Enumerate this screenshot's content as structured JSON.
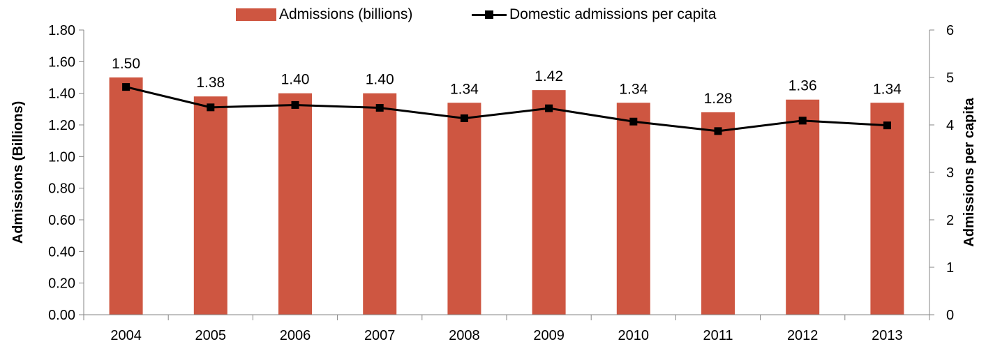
{
  "chart_data": {
    "type": "bar",
    "title": "",
    "categories": [
      "2004",
      "2005",
      "2006",
      "2007",
      "2008",
      "2009",
      "2010",
      "2011",
      "2012",
      "2013"
    ],
    "series": [
      {
        "name": "Admissions (billions)",
        "type": "bar",
        "axis": "left",
        "color": "#CE5641",
        "values": [
          1.5,
          1.38,
          1.4,
          1.4,
          1.34,
          1.42,
          1.34,
          1.28,
          1.36,
          1.34
        ],
        "data_labels": [
          "1.50",
          "1.38",
          "1.40",
          "1.40",
          "1.34",
          "1.42",
          "1.34",
          "1.28",
          "1.36",
          "1.34"
        ]
      },
      {
        "name": "Domestic admissions per capita",
        "type": "line",
        "axis": "right",
        "color": "#000000",
        "marker": "square",
        "values": [
          4.8,
          4.37,
          4.42,
          4.36,
          4.14,
          4.35,
          4.07,
          3.87,
          4.09,
          3.99
        ]
      }
    ],
    "y_left": {
      "label": "Admissions (Billions)",
      "min": 0,
      "max": 1.8,
      "ticks": [
        "0.00",
        "0.20",
        "0.40",
        "0.60",
        "0.80",
        "1.00",
        "1.20",
        "1.40",
        "1.60",
        "1.80"
      ]
    },
    "y_right": {
      "label": "Admissions per capita",
      "min": 0,
      "max": 6,
      "ticks": [
        "0",
        "1",
        "2",
        "3",
        "4",
        "5",
        "6"
      ]
    },
    "xlabel": "",
    "grid": false,
    "legend": {
      "position": "top-center",
      "bar_label": "Admissions (billions)",
      "line_label": "Domestic admissions per capita"
    }
  }
}
